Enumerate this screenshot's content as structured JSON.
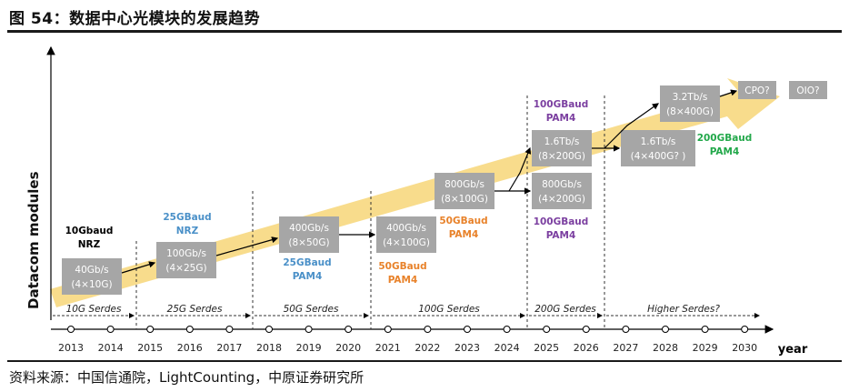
{
  "title": "图 54：数据中心光模块的发展趋势",
  "source": "资料来源：中国信通院，LightCounting，中原证券研究所",
  "y_axis_label": "Datacom modules",
  "x_axis_label": "year",
  "years": [
    "2013",
    "2014",
    "2015",
    "2016",
    "2017",
    "2018",
    "2019",
    "2020",
    "2021",
    "2022",
    "2023",
    "2024",
    "2025",
    "2026",
    "2027",
    "2028",
    "2029",
    "2030"
  ],
  "serdes": [
    "10G Serdes",
    "25G Serdes",
    "50G Serdes",
    "100G Serdes",
    "200G Serdes",
    "Higher Serdes?"
  ],
  "modules": [
    {
      "l1": "40Gb/s",
      "l2": "(4×10G)"
    },
    {
      "l1": "100Gb/s",
      "l2": "(4×25G)"
    },
    {
      "l1": "400Gb/s",
      "l2": "(8×50G)"
    },
    {
      "l1": "400Gb/s",
      "l2": "(4×100G)"
    },
    {
      "l1": "800Gb/s",
      "l2": "(8×100G)"
    },
    {
      "l1": "1.6Tb/s",
      "l2": "(8×200G)"
    },
    {
      "l1": "800Gb/s",
      "l2": "(4×200G)"
    },
    {
      "l1": "1.6Tb/s",
      "l2": "(4×400G? )"
    },
    {
      "l1": "3.2Tb/s",
      "l2": "(8×400G)"
    },
    {
      "l1": "CPO?",
      "l2": ""
    },
    {
      "l1": "OIO?",
      "l2": ""
    }
  ],
  "baud_labels": [
    {
      "l1": "10Gbaud",
      "l2": "NRZ",
      "color": "#111111"
    },
    {
      "l1": "25GBaud",
      "l2": "NRZ",
      "color": "#4a90c8"
    },
    {
      "l1": "25GBaud",
      "l2": "PAM4",
      "color": "#4a90c8"
    },
    {
      "l1": "50GBaud",
      "l2": "PAM4",
      "color": "#e8822a"
    },
    {
      "l1": "50GBaud",
      "l2": "PAM4",
      "color": "#e8822a"
    },
    {
      "l1": "100GBaud",
      "l2": "PAM4",
      "color": "#7b3fa0"
    },
    {
      "l1": "100GBaud",
      "l2": "PAM4",
      "color": "#7b3fa0"
    },
    {
      "l1": "200GBaud",
      "l2": "PAM4",
      "color": "#22a84a"
    }
  ],
  "colors": {
    "arrow_band": "#f8dc8c",
    "module_box": "#a6a6a6",
    "rule": "#1a1a1a"
  }
}
